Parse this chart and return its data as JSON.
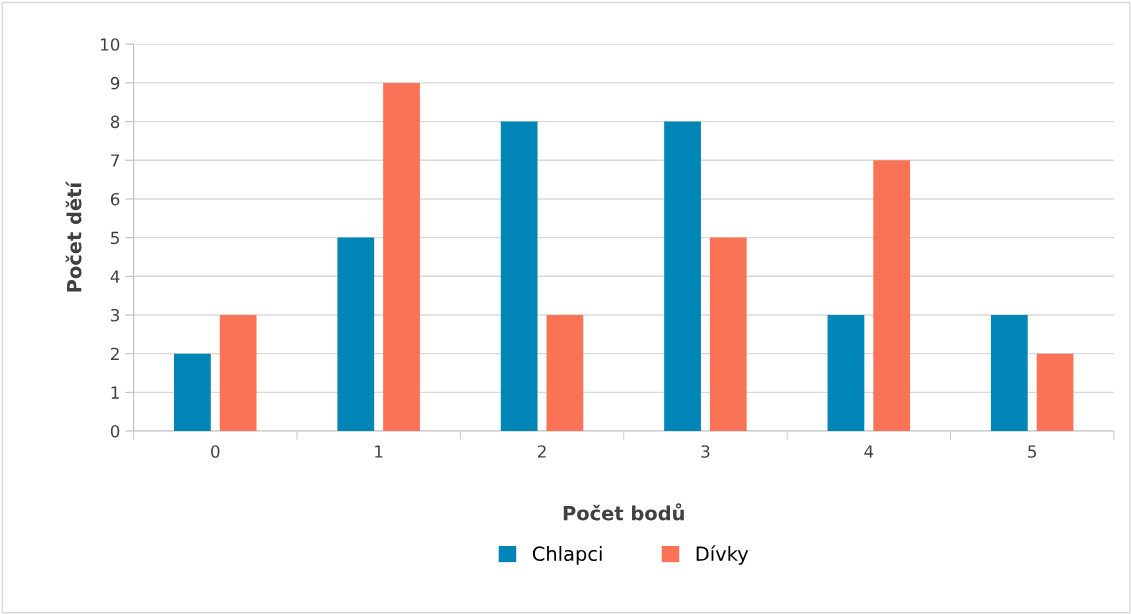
{
  "chart_data": {
    "type": "bar",
    "xlabel": "Počet bodů",
    "ylabel": "Počet dětí",
    "categories": [
      "0",
      "1",
      "2",
      "3",
      "4",
      "5"
    ],
    "series": [
      {
        "name": "Chlapci",
        "color": "#0085b7",
        "values": [
          2,
          5,
          8,
          8,
          3,
          3
        ]
      },
      {
        "name": "Dívky",
        "color": "#fb7357",
        "values": [
          3,
          9,
          3,
          5,
          7,
          2
        ]
      }
    ],
    "ylim": [
      0,
      10
    ],
    "yticks": [
      0,
      1,
      2,
      3,
      4,
      5,
      6,
      7,
      8,
      9,
      10
    ],
    "grid": "y",
    "legend": "bottom"
  }
}
